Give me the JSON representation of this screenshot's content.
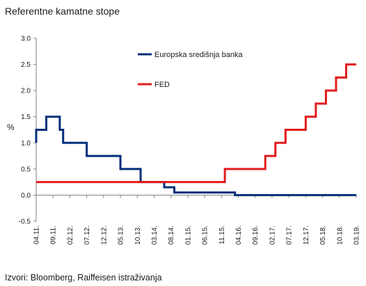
{
  "title": "Referentne kamatne stope",
  "source": "Izvori: Bloomberg, Raiffeisen istraživanja",
  "chart_data": {
    "type": "line",
    "ylabel": "%",
    "xlabel": "",
    "ylim": [
      -0.5,
      3.0
    ],
    "yticks": [
      "3.0",
      "2.5",
      "2.0",
      "1.5",
      "1.0",
      "0.5",
      "0.0",
      "-0.5"
    ],
    "ytick_values": [
      3.0,
      2.5,
      2.0,
      1.5,
      1.0,
      0.5,
      0.0,
      -0.5
    ],
    "x_ticks": [
      "04.11.",
      "09.11.",
      "02.12.",
      "07.12.",
      "12.12.",
      "05.13.",
      "10.13.",
      "03.14.",
      "08.14.",
      "01.15.",
      "06.15.",
      "11.15.",
      "04.16.",
      "09.16.",
      "02.17.",
      "07.17.",
      "12.17.",
      "05.18.",
      "10.18.",
      "03.19."
    ],
    "x_range": [
      "2011-04",
      "2019-03"
    ],
    "grid": false,
    "legend_position": "top-center",
    "series": [
      {
        "name": "Europska središnja banka",
        "color": "#002f7a",
        "step": true,
        "points": [
          [
            "2011-04",
            1.0
          ],
          [
            "2011-04",
            1.25
          ],
          [
            "2011-07",
            1.5
          ],
          [
            "2011-11",
            1.25
          ],
          [
            "2011-12",
            1.0
          ],
          [
            "2012-07",
            0.75
          ],
          [
            "2013-05",
            0.5
          ],
          [
            "2013-11",
            0.25
          ],
          [
            "2014-06",
            0.15
          ],
          [
            "2014-09",
            0.05
          ],
          [
            "2016-03",
            0.0
          ],
          [
            "2019-03",
            0.0
          ]
        ]
      },
      {
        "name": "FED",
        "color": "#e31b1b",
        "step": true,
        "points": [
          [
            "2011-04",
            0.25
          ],
          [
            "2015-12",
            0.5
          ],
          [
            "2016-12",
            0.75
          ],
          [
            "2017-03",
            1.0
          ],
          [
            "2017-06",
            1.25
          ],
          [
            "2017-12",
            1.5
          ],
          [
            "2018-03",
            1.75
          ],
          [
            "2018-06",
            2.0
          ],
          [
            "2018-09",
            2.25
          ],
          [
            "2018-12",
            2.5
          ],
          [
            "2019-03",
            2.5
          ]
        ]
      }
    ]
  }
}
